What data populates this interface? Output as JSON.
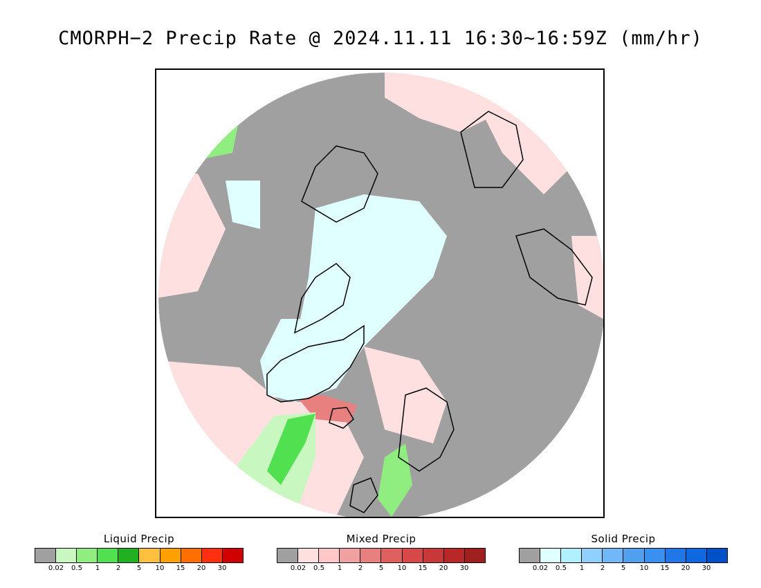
{
  "title": "CMORPH−2 Precip Rate @ 2024.11.11 16:30~16:59Z (mm/hr)",
  "map": {
    "projection": "polar stereographic, North Pole",
    "colors": {
      "no_precip": "#a0a0a0",
      "ocean_frame": "#ffffff",
      "coastline": "#000000"
    }
  },
  "legends": [
    {
      "id": "liquid",
      "title": "Liquid Precip",
      "colors": [
        "#a0a0a0",
        "#c8f7c0",
        "#90ee80",
        "#50e050",
        "#20b020",
        "#ffc040",
        "#ffa000",
        "#ff7000",
        "#ff3010",
        "#d00000"
      ],
      "ticks": [
        "0.02",
        "0.5",
        "1",
        "2",
        "5",
        "10",
        "15",
        "20",
        "30"
      ]
    },
    {
      "id": "mixed",
      "title": "Mixed Precip",
      "colors": [
        "#a0a0a0",
        "#ffe0e0",
        "#ffc8c8",
        "#f0a0a0",
        "#e88080",
        "#e06060",
        "#d84848",
        "#c83838",
        "#b82828",
        "#a02020"
      ],
      "ticks": [
        "0.02",
        "0.5",
        "1",
        "2",
        "5",
        "10",
        "15",
        "20",
        "30"
      ]
    },
    {
      "id": "solid",
      "title": "Solid Precip",
      "colors": [
        "#a0a0a0",
        "#e0ffff",
        "#b0f0ff",
        "#90d0ff",
        "#70b8f8",
        "#50a0f0",
        "#3890f0",
        "#2078e8",
        "#1068e0",
        "#0050c8"
      ],
      "ticks": [
        "0.02",
        "0.5",
        "1",
        "2",
        "5",
        "10",
        "15",
        "20",
        "30"
      ]
    }
  ]
}
